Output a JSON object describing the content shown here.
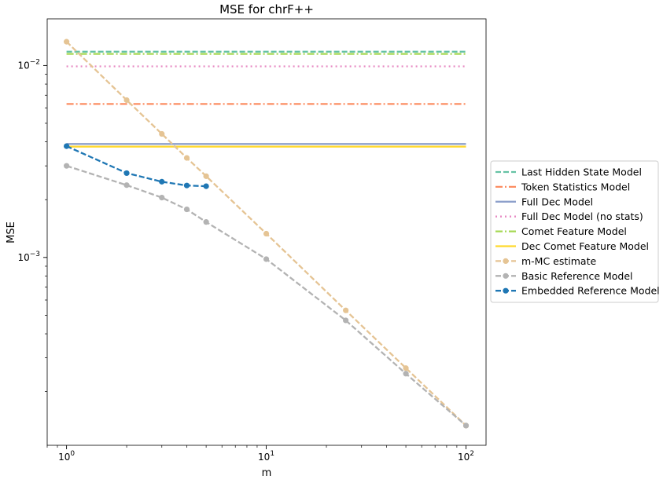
{
  "chart_data": {
    "type": "line",
    "title": "MSE for chrF++",
    "xlabel": "m",
    "ylabel": "MSE",
    "xscale": "log",
    "yscale": "log",
    "xlim": [
      0.8,
      126
    ],
    "ylim": [
      0.000105,
      0.0175
    ],
    "x_tick_labels": [
      "10^0",
      "10^1",
      "10^2"
    ],
    "y_tick_labels": [
      "10^-3",
      "10^-2"
    ],
    "legend_position": "right-outside",
    "grid": false,
    "series": [
      {
        "name": "Last Hidden State Model",
        "style": "dashed",
        "color": "#66c2a5",
        "marker": "none",
        "x": [
          1,
          100
        ],
        "y": [
          0.0118,
          0.0118
        ]
      },
      {
        "name": "Token Statistics Model",
        "style": "dashdot",
        "color": "#fc8d62",
        "marker": "none",
        "x": [
          1,
          100
        ],
        "y": [
          0.0063,
          0.0063
        ]
      },
      {
        "name": "Full Dec Model",
        "style": "solid",
        "color": "#8da0cb",
        "marker": "none",
        "x": [
          1,
          100
        ],
        "y": [
          0.0039,
          0.0039
        ]
      },
      {
        "name": "Full Dec Model (no stats)",
        "style": "dotted",
        "color": "#e78ac3",
        "marker": "none",
        "x": [
          1,
          100
        ],
        "y": [
          0.0099,
          0.0099
        ]
      },
      {
        "name": "Comet Feature Model",
        "style": "dashdot",
        "color": "#a6d854",
        "marker": "none",
        "x": [
          1,
          100
        ],
        "y": [
          0.0115,
          0.0115
        ]
      },
      {
        "name": "Dec Comet Feature Model",
        "style": "solid",
        "color": "#ffd92f",
        "marker": "none",
        "x": [
          1,
          100
        ],
        "y": [
          0.00378,
          0.00378
        ]
      },
      {
        "name": "m-MC estimate",
        "style": "dashed",
        "color": "#e5c494",
        "marker": "circle",
        "x": [
          1,
          2,
          3,
          4,
          5,
          10,
          25,
          50,
          100
        ],
        "y": [
          0.0133,
          0.0066,
          0.0044,
          0.0033,
          0.00265,
          0.00133,
          0.00053,
          0.000265,
          0.000133
        ]
      },
      {
        "name": "Basic Reference Model",
        "style": "dashed",
        "color": "#b3b3b3",
        "marker": "circle",
        "x": [
          1,
          2,
          3,
          4,
          5,
          10,
          25,
          50,
          100
        ],
        "y": [
          0.003,
          0.00238,
          0.00205,
          0.00178,
          0.00153,
          0.00098,
          0.00047,
          0.000248,
          0.000133
        ]
      },
      {
        "name": "Embedded Reference Model",
        "style": "dashed",
        "color": "#1f77b4",
        "marker": "circle",
        "x": [
          1,
          2,
          3,
          4,
          5
        ],
        "y": [
          0.0038,
          0.00275,
          0.00248,
          0.00237,
          0.00235
        ]
      }
    ]
  }
}
